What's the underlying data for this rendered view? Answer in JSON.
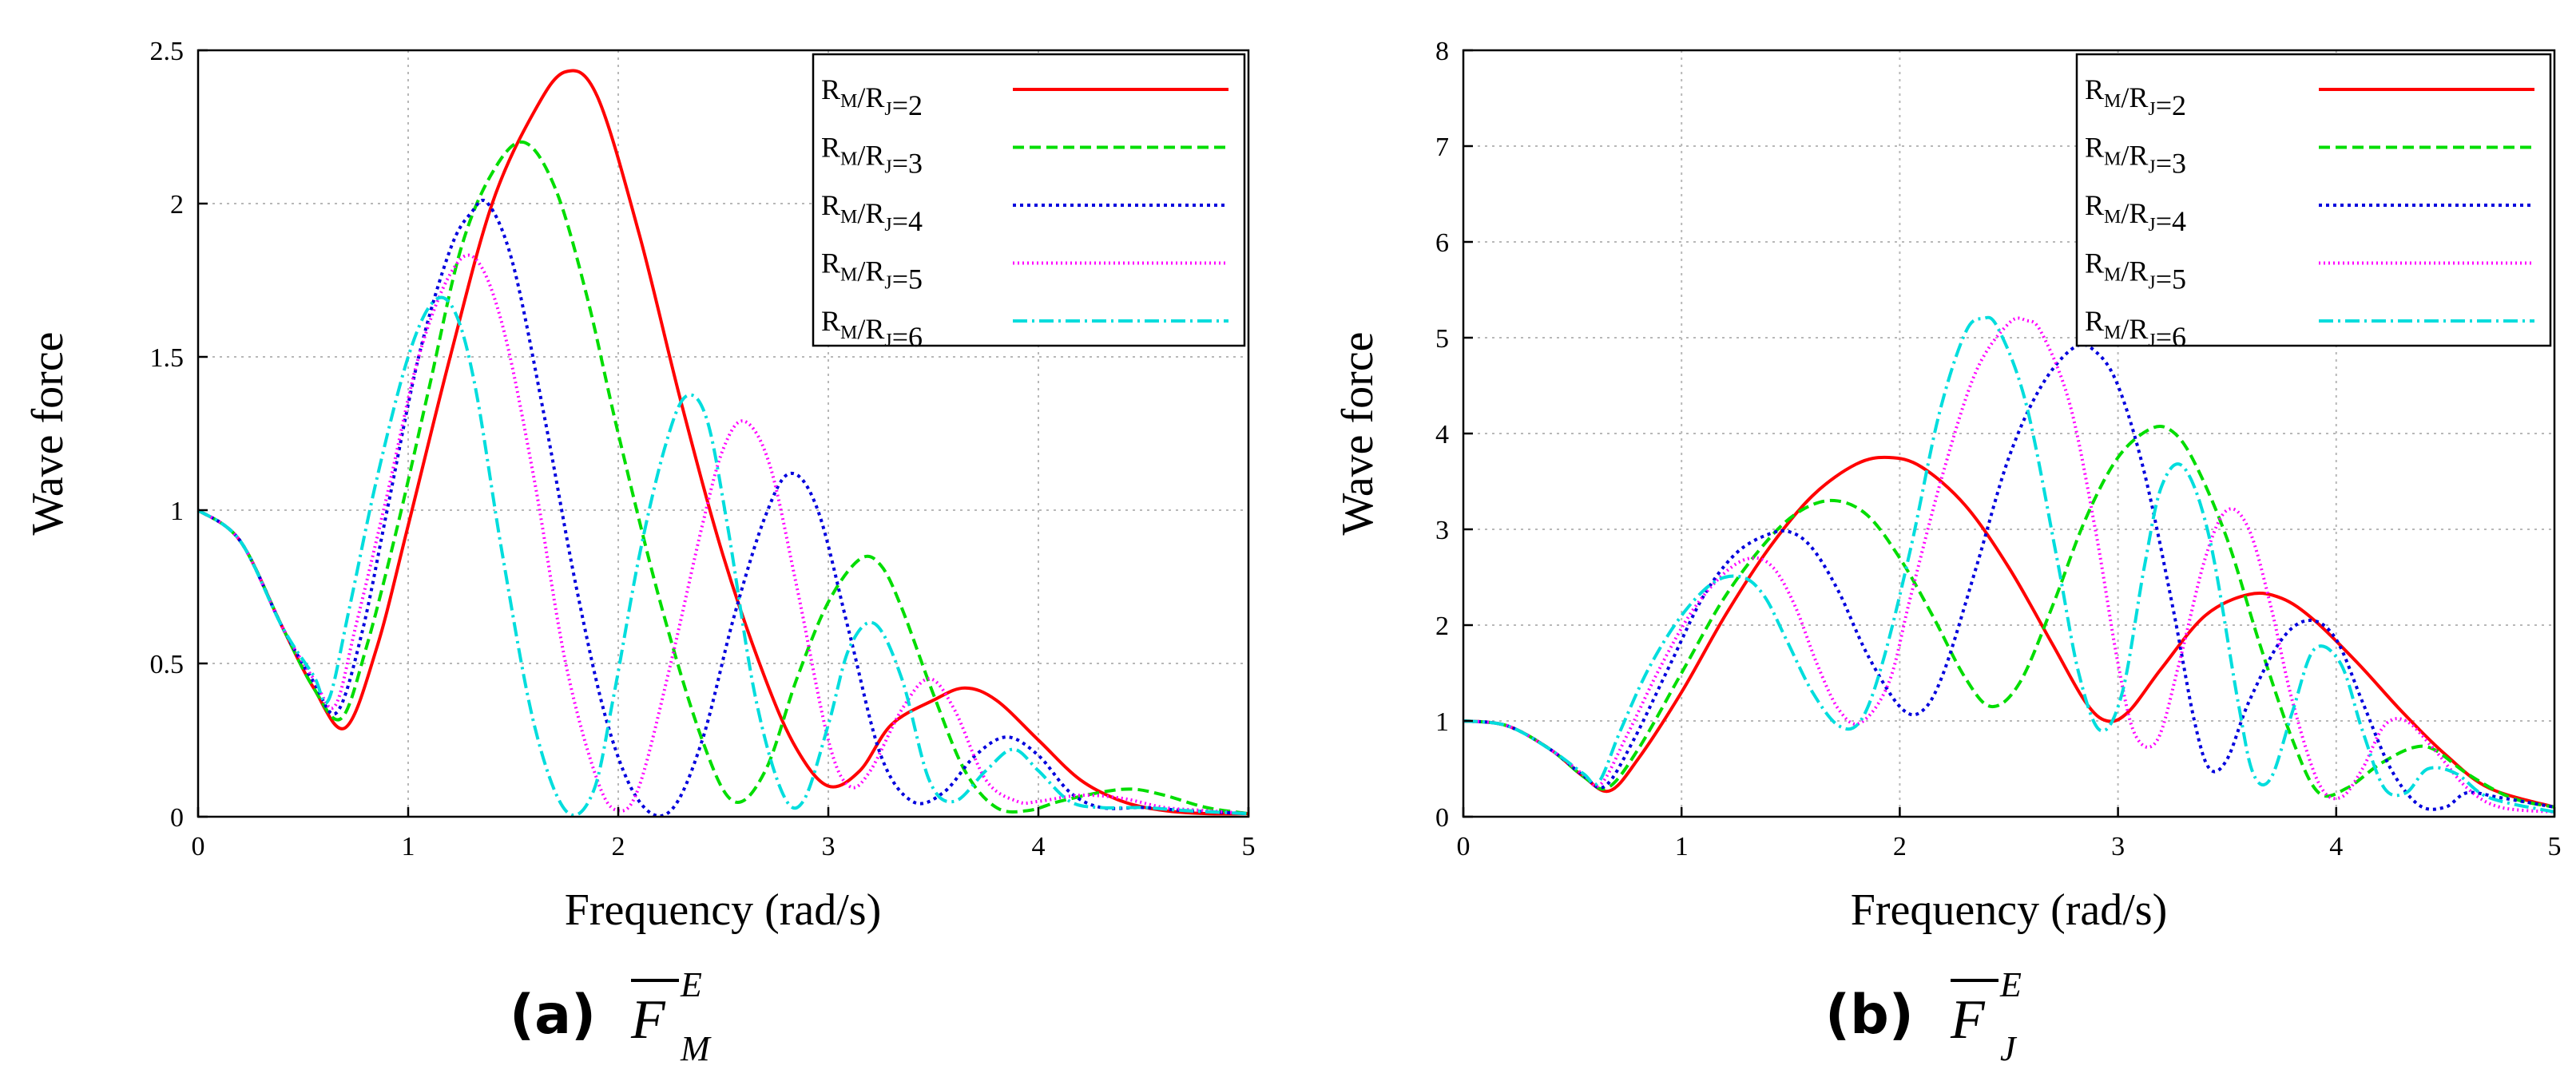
{
  "chart_data": [
    {
      "type": "line",
      "panel": "a",
      "caption_label": "(a)",
      "caption_symbol": "F",
      "caption_superscript": "E",
      "caption_subscript": "M",
      "xlabel": "Frequency (rad/s)",
      "ylabel": "Wave force",
      "xlim": [
        0,
        5
      ],
      "ylim": [
        0,
        2.5
      ],
      "xticks": [
        "0",
        "1",
        "2",
        "3",
        "4",
        "5"
      ],
      "yticks": [
        "0",
        "0.5",
        "1",
        "1.5",
        "2",
        "2.5"
      ],
      "grid": true,
      "legend_position": "top-right",
      "series": [
        {
          "name": "R_M/R_J=2",
          "label_main": "R",
          "ratio": "2",
          "color": "#ff0000",
          "dash": "solid",
          "x": [
            0,
            0.2,
            0.4,
            0.55,
            0.7,
            0.85,
            1.0,
            1.2,
            1.4,
            1.6,
            1.75,
            1.9,
            2.1,
            2.3,
            2.5,
            2.7,
            2.85,
            3.0,
            3.15,
            3.3,
            3.5,
            3.65,
            3.8,
            4.0,
            4.2,
            4.4,
            4.6,
            4.8,
            5.0
          ],
          "y": [
            1.0,
            0.9,
            0.62,
            0.42,
            0.29,
            0.55,
            0.95,
            1.5,
            2.0,
            2.3,
            2.43,
            2.35,
            1.9,
            1.35,
            0.85,
            0.45,
            0.22,
            0.1,
            0.15,
            0.3,
            0.38,
            0.42,
            0.38,
            0.25,
            0.12,
            0.05,
            0.02,
            0.01,
            0.01
          ]
        },
        {
          "name": "R_M/R_J=3",
          "label_main": "R",
          "ratio": "3",
          "color": "#00dd00",
          "dash": "14 7",
          "x": [
            0,
            0.2,
            0.4,
            0.55,
            0.68,
            0.8,
            0.95,
            1.1,
            1.25,
            1.4,
            1.55,
            1.7,
            1.85,
            2.0,
            2.2,
            2.4,
            2.55,
            2.7,
            2.85,
            3.0,
            3.15,
            3.25,
            3.35,
            3.5,
            3.65,
            3.8,
            3.95,
            4.1,
            4.3,
            4.45,
            4.6,
            4.8,
            5.0
          ],
          "y": [
            1.0,
            0.9,
            0.62,
            0.42,
            0.32,
            0.55,
            0.95,
            1.4,
            1.85,
            2.1,
            2.2,
            2.05,
            1.7,
            1.25,
            0.7,
            0.25,
            0.05,
            0.15,
            0.45,
            0.7,
            0.84,
            0.82,
            0.68,
            0.4,
            0.15,
            0.03,
            0.02,
            0.05,
            0.08,
            0.09,
            0.07,
            0.03,
            0.01
          ]
        },
        {
          "name": "R_M/R_J=4",
          "label_main": "R",
          "ratio": "4",
          "color": "#0000dd",
          "dash": "4 5",
          "x": [
            0,
            0.2,
            0.4,
            0.55,
            0.66,
            0.78,
            0.9,
            1.05,
            1.2,
            1.3,
            1.38,
            1.5,
            1.65,
            1.8,
            1.95,
            2.1,
            2.25,
            2.4,
            2.55,
            2.7,
            2.82,
            2.95,
            3.1,
            3.25,
            3.4,
            3.55,
            3.7,
            3.85,
            4.0,
            4.15,
            4.3,
            4.5,
            4.7,
            5.0
          ],
          "y": [
            1.0,
            0.9,
            0.62,
            0.44,
            0.34,
            0.6,
            1.0,
            1.5,
            1.85,
            1.97,
            2.0,
            1.8,
            1.3,
            0.75,
            0.3,
            0.05,
            0.02,
            0.25,
            0.65,
            0.98,
            1.12,
            1.0,
            0.6,
            0.2,
            0.05,
            0.08,
            0.2,
            0.26,
            0.2,
            0.08,
            0.03,
            0.03,
            0.02,
            0.01
          ]
        },
        {
          "name": "R_M/R_J=5",
          "label_main": "R",
          "ratio": "5",
          "color": "#ff00ff",
          "dash": "2 4",
          "x": [
            0,
            0.2,
            0.4,
            0.55,
            0.65,
            0.75,
            0.9,
            1.05,
            1.2,
            1.32,
            1.45,
            1.6,
            1.75,
            1.9,
            2.0,
            2.1,
            2.25,
            2.4,
            2.5,
            2.6,
            2.72,
            2.85,
            3.0,
            3.1,
            3.2,
            3.35,
            3.48,
            3.6,
            3.75,
            3.9,
            4.0,
            4.2,
            4.4,
            4.6,
            4.8,
            5.0
          ],
          "y": [
            1.0,
            0.9,
            0.62,
            0.45,
            0.36,
            0.62,
            1.05,
            1.5,
            1.77,
            1.82,
            1.6,
            1.1,
            0.5,
            0.12,
            0.02,
            0.1,
            0.5,
            0.95,
            1.2,
            1.29,
            1.15,
            0.75,
            0.25,
            0.1,
            0.15,
            0.35,
            0.45,
            0.35,
            0.12,
            0.05,
            0.05,
            0.07,
            0.06,
            0.03,
            0.02,
            0.01
          ]
        },
        {
          "name": "R_M/R_J=6",
          "label_main": "R",
          "ratio": "6",
          "color": "#00dddd",
          "dash": "18 6 3 6",
          "x": [
            0,
            0.2,
            0.4,
            0.55,
            0.62,
            0.72,
            0.85,
            1.0,
            1.12,
            1.22,
            1.32,
            1.45,
            1.6,
            1.75,
            1.88,
            1.98,
            2.1,
            2.22,
            2.32,
            2.42,
            2.52,
            2.65,
            2.78,
            2.88,
            3.0,
            3.1,
            3.22,
            3.35,
            3.48,
            3.6,
            3.75,
            3.88,
            4.0,
            4.15,
            4.3,
            4.5,
            4.7,
            5.0
          ],
          "y": [
            1.0,
            0.9,
            0.62,
            0.46,
            0.38,
            0.68,
            1.1,
            1.5,
            1.68,
            1.65,
            1.4,
            0.85,
            0.3,
            0.02,
            0.08,
            0.4,
            0.85,
            1.2,
            1.37,
            1.3,
            0.95,
            0.4,
            0.08,
            0.05,
            0.3,
            0.55,
            0.63,
            0.45,
            0.12,
            0.05,
            0.15,
            0.22,
            0.15,
            0.05,
            0.03,
            0.03,
            0.02,
            0.01
          ]
        }
      ]
    },
    {
      "type": "line",
      "panel": "b",
      "caption_label": "(b)",
      "caption_symbol": "F",
      "caption_superscript": "E",
      "caption_subscript": "J",
      "xlabel": "Frequency (rad/s)",
      "ylabel": "Wave force",
      "xlim": [
        0,
        5
      ],
      "ylim": [
        0,
        8
      ],
      "xticks": [
        "0",
        "1",
        "2",
        "3",
        "4",
        "5"
      ],
      "yticks": [
        "0",
        "1",
        "2",
        "3",
        "4",
        "5",
        "6",
        "7",
        "8"
      ],
      "grid": true,
      "legend_position": "top-right",
      "series": [
        {
          "name": "R_M/R_J=2",
          "label_main": "R",
          "ratio": "2",
          "color": "#ff0000",
          "dash": "solid",
          "x": [
            0,
            0.2,
            0.4,
            0.55,
            0.67,
            0.8,
            1.0,
            1.2,
            1.4,
            1.6,
            1.8,
            1.95,
            2.1,
            2.3,
            2.5,
            2.7,
            2.85,
            2.95,
            3.05,
            3.2,
            3.4,
            3.6,
            3.75,
            3.9,
            4.1,
            4.3,
            4.5,
            4.7,
            5.0
          ],
          "y": [
            1.0,
            0.95,
            0.7,
            0.42,
            0.27,
            0.6,
            1.3,
            2.1,
            2.8,
            3.35,
            3.68,
            3.75,
            3.65,
            3.25,
            2.6,
            1.8,
            1.2,
            1.0,
            1.1,
            1.55,
            2.1,
            2.32,
            2.28,
            2.05,
            1.6,
            1.1,
            0.65,
            0.3,
            0.1
          ]
        },
        {
          "name": "R_M/R_J=3",
          "label_main": "R",
          "ratio": "3",
          "color": "#00dd00",
          "dash": "14 7",
          "x": [
            0,
            0.2,
            0.4,
            0.55,
            0.66,
            0.8,
            1.0,
            1.2,
            1.4,
            1.55,
            1.7,
            1.85,
            2.0,
            2.15,
            2.3,
            2.42,
            2.55,
            2.7,
            2.85,
            3.0,
            3.15,
            3.25,
            3.35,
            3.5,
            3.65,
            3.8,
            3.92,
            4.05,
            4.2,
            4.35,
            4.45,
            4.6,
            4.8,
            5.0
          ],
          "y": [
            1.0,
            0.95,
            0.7,
            0.42,
            0.3,
            0.7,
            1.5,
            2.3,
            2.9,
            3.2,
            3.3,
            3.15,
            2.7,
            2.1,
            1.45,
            1.15,
            1.4,
            2.2,
            3.1,
            3.75,
            4.05,
            4.02,
            3.7,
            2.9,
            1.8,
            0.8,
            0.25,
            0.3,
            0.55,
            0.72,
            0.7,
            0.45,
            0.2,
            0.1
          ]
        },
        {
          "name": "R_M/R_J=4",
          "label_main": "R",
          "ratio": "4",
          "color": "#0000dd",
          "dash": "4 5",
          "x": [
            0,
            0.2,
            0.4,
            0.55,
            0.65,
            0.78,
            0.95,
            1.1,
            1.25,
            1.4,
            1.5,
            1.6,
            1.72,
            1.85,
            2.0,
            2.1,
            2.2,
            2.35,
            2.5,
            2.65,
            2.8,
            2.9,
            3.0,
            3.12,
            3.25,
            3.35,
            3.42,
            3.5,
            3.6,
            3.75,
            3.88,
            4.0,
            4.12,
            4.25,
            4.38,
            4.5,
            4.6,
            4.75,
            5.0
          ],
          "y": [
            1.0,
            0.95,
            0.7,
            0.43,
            0.32,
            0.8,
            1.6,
            2.3,
            2.75,
            2.95,
            2.97,
            2.8,
            2.35,
            1.7,
            1.15,
            1.1,
            1.5,
            2.6,
            3.75,
            4.5,
            4.9,
            4.85,
            4.5,
            3.6,
            2.2,
            1.0,
            0.5,
            0.6,
            1.2,
            1.85,
            2.05,
            1.85,
            1.2,
            0.5,
            0.12,
            0.1,
            0.25,
            0.2,
            0.1
          ]
        },
        {
          "name": "R_M/R_J=5",
          "label_main": "R",
          "ratio": "5",
          "color": "#ff00ff",
          "dash": "2 4",
          "x": [
            0,
            0.2,
            0.4,
            0.55,
            0.63,
            0.75,
            0.9,
            1.05,
            1.2,
            1.32,
            1.42,
            1.52,
            1.62,
            1.72,
            1.82,
            1.95,
            2.05,
            2.2,
            2.35,
            2.5,
            2.58,
            2.65,
            2.78,
            2.9,
            3.0,
            3.08,
            3.18,
            3.28,
            3.4,
            3.5,
            3.6,
            3.7,
            3.8,
            3.92,
            4.02,
            4.12,
            4.22,
            4.32,
            4.45,
            4.6,
            4.75,
            5.0
          ],
          "y": [
            1.0,
            0.95,
            0.7,
            0.44,
            0.34,
            0.85,
            1.55,
            2.15,
            2.55,
            2.7,
            2.6,
            2.2,
            1.6,
            1.12,
            0.98,
            1.4,
            2.3,
            3.6,
            4.65,
            5.15,
            5.18,
            5.05,
            4.3,
            2.95,
            1.6,
            0.85,
            0.8,
            1.6,
            2.7,
            3.2,
            3.0,
            2.2,
            1.2,
            0.35,
            0.2,
            0.5,
            0.95,
            1.0,
            0.7,
            0.3,
            0.1,
            0.05
          ]
        },
        {
          "name": "R_M/R_J=6",
          "label_main": "R",
          "ratio": "6",
          "color": "#00dddd",
          "dash": "18 6 3 6",
          "x": [
            0,
            0.2,
            0.4,
            0.55,
            0.62,
            0.72,
            0.85,
            1.0,
            1.15,
            1.28,
            1.38,
            1.48,
            1.6,
            1.72,
            1.82,
            1.92,
            2.05,
            2.18,
            2.3,
            2.38,
            2.45,
            2.58,
            2.72,
            2.82,
            2.92,
            3.02,
            3.12,
            3.2,
            3.3,
            3.42,
            3.55,
            3.62,
            3.7,
            3.8,
            3.9,
            4.02,
            4.12,
            4.22,
            4.32,
            4.42,
            4.55,
            4.7,
            5.0
          ],
          "y": [
            1.0,
            0.95,
            0.7,
            0.45,
            0.36,
            0.9,
            1.55,
            2.1,
            2.45,
            2.5,
            2.3,
            1.85,
            1.3,
            0.95,
            1.0,
            1.6,
            2.8,
            4.2,
            5.05,
            5.2,
            5.1,
            4.3,
            2.7,
            1.5,
            0.9,
            1.3,
            2.6,
            3.45,
            3.65,
            2.9,
            1.2,
            0.45,
            0.4,
            1.1,
            1.75,
            1.6,
            0.9,
            0.3,
            0.25,
            0.5,
            0.45,
            0.2,
            0.05
          ]
        }
      ]
    }
  ]
}
